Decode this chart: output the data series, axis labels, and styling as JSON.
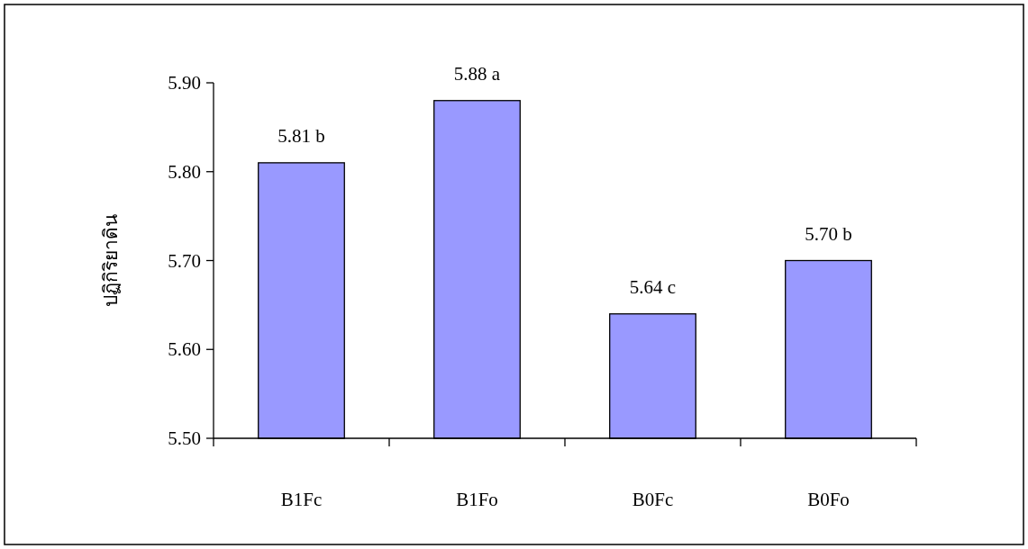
{
  "chart_data": {
    "type": "bar",
    "ylabel": "ปฏิกิริยาดิน",
    "categories": [
      "B1Fc",
      "B1Fo",
      "B0Fc",
      "B0Fo"
    ],
    "values": [
      5.81,
      5.88,
      5.64,
      5.7
    ],
    "value_labels": [
      "5.81 b",
      "5.88 a",
      "5.64 c",
      "5.70 b"
    ],
    "color": "#9999ff",
    "ylim": [
      5.5,
      5.9
    ],
    "yticks": [
      {
        "value": 5.5,
        "label": "5.50"
      },
      {
        "value": 5.6,
        "label": "5.60"
      },
      {
        "value": 5.7,
        "label": "5.70"
      },
      {
        "value": 5.8,
        "label": "5.80"
      },
      {
        "value": 5.9,
        "label": "5.90"
      }
    ],
    "grid": false
  }
}
